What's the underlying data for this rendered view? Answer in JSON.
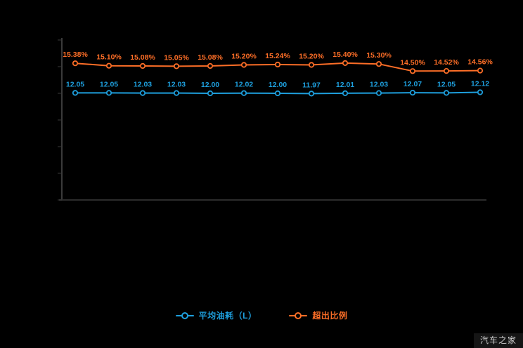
{
  "watermark": {
    "text": "汽车之家"
  },
  "legend": {
    "position": "bottom-center",
    "items": [
      {
        "label": "平均油耗（L）",
        "color": "#1e9fdd"
      },
      {
        "label": "超出比例",
        "color": "#fd6e27"
      }
    ]
  },
  "chart_data": {
    "type": "line",
    "x": [
      1,
      2,
      3,
      4,
      5,
      6,
      7,
      8,
      9,
      10,
      11,
      12,
      13
    ],
    "x_labels_visible": false,
    "y_tick_labels_visible": false,
    "ylim": [
      0,
      18
    ],
    "y_tick_count": 7,
    "grid": false,
    "legend_position": "bottom",
    "series": [
      {
        "name": "平均油耗（L）",
        "color": "#1e9fdd",
        "values": [
          12.05,
          12.05,
          12.03,
          12.03,
          12.0,
          12.02,
          12.0,
          11.97,
          12.01,
          12.03,
          12.07,
          12.05,
          12.12
        ],
        "labels": [
          "12.05",
          "12.05",
          "12.03",
          "12.03",
          "12.00",
          "12.02",
          "12.00",
          "11.97",
          "12.01",
          "12.03",
          "12.07",
          "12.05",
          "12.12"
        ]
      },
      {
        "name": "超出比例",
        "color": "#fd6e27",
        "values": [
          15.38,
          15.1,
          15.08,
          15.05,
          15.08,
          15.2,
          15.24,
          15.2,
          15.4,
          15.3,
          14.5,
          14.52,
          14.56
        ],
        "labels": [
          "15.38%",
          "15.10%",
          "15.08%",
          "15.05%",
          "15.08%",
          "15.20%",
          "15.24%",
          "15.20%",
          "15.40%",
          "15.30%",
          "14.50%",
          "14.52%",
          "14.56%"
        ]
      }
    ]
  }
}
